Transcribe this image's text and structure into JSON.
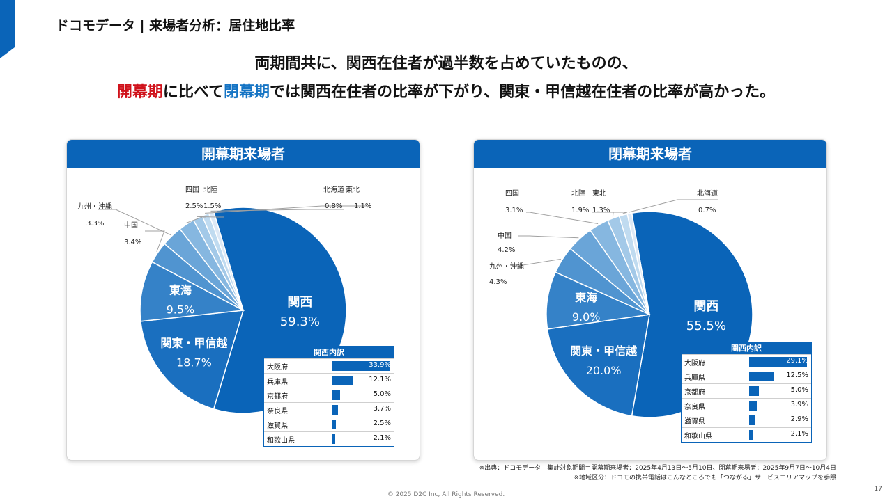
{
  "page": {
    "title": "ドコモデータ | 来場者分析：居住地比率",
    "headline1": "両期間共に、関西在住者が過半数を占めていたものの、",
    "headline2": {
      "part1": "開幕期",
      "part2": "に比べて",
      "part3": "閉幕期",
      "part4": "では関西在住者の比率が下がり、関東・甲信越在住者の比率が高かった。"
    },
    "colors": {
      "brand": "#0a64b8",
      "red": "#d0121b",
      "blue": "#1574c4"
    }
  },
  "charts": {
    "left": {
      "title": "開幕期来場者",
      "breakdown_title": "関西内訳"
    },
    "right": {
      "title": "閉幕期来場者",
      "breakdown_title": "関西内訳"
    }
  },
  "chart_data": [
    {
      "type": "pie",
      "title": "開幕期来場者",
      "slices": [
        {
          "label": "関西",
          "value": 59.3,
          "value_label": "59.3%"
        },
        {
          "label": "関東・甲信越",
          "value": 18.7,
          "value_label": "18.7%"
        },
        {
          "label": "東海",
          "value": 9.5,
          "value_label": "9.5%"
        },
        {
          "label": "中国",
          "value": 3.4,
          "value_label": "3.4%"
        },
        {
          "label": "九州・沖縄",
          "value": 3.3,
          "value_label": "3.3%"
        },
        {
          "label": "四国",
          "value": 2.5,
          "value_label": "2.5%"
        },
        {
          "label": "北陸",
          "value": 1.5,
          "value_label": "1.5%"
        },
        {
          "label": "東北",
          "value": 1.1,
          "value_label": "1.1%"
        },
        {
          "label": "北海道",
          "value": 0.8,
          "value_label": "0.8%"
        }
      ],
      "breakdown": {
        "title": "関西内訳",
        "items": [
          {
            "label": "大阪府",
            "value": 33.9,
            "value_label": "33.9%"
          },
          {
            "label": "兵庫県",
            "value": 12.1,
            "value_label": "12.1%"
          },
          {
            "label": "京都府",
            "value": 5.0,
            "value_label": "5.0%"
          },
          {
            "label": "奈良県",
            "value": 3.7,
            "value_label": "3.7%"
          },
          {
            "label": "滋賀県",
            "value": 2.5,
            "value_label": "2.5%"
          },
          {
            "label": "和歌山県",
            "value": 2.1,
            "value_label": "2.1%"
          }
        ]
      }
    },
    {
      "type": "pie",
      "title": "閉幕期来場者",
      "slices": [
        {
          "label": "関西",
          "value": 55.5,
          "value_label": "55.5%"
        },
        {
          "label": "関東・甲信越",
          "value": 20.0,
          "value_label": "20.0%"
        },
        {
          "label": "東海",
          "value": 9.0,
          "value_label": "9.0%"
        },
        {
          "label": "九州・沖縄",
          "value": 4.3,
          "value_label": "4.3%"
        },
        {
          "label": "中国",
          "value": 4.2,
          "value_label": "4.2%"
        },
        {
          "label": "四国",
          "value": 3.1,
          "value_label": "3.1%"
        },
        {
          "label": "北陸",
          "value": 1.9,
          "value_label": "1.9%"
        },
        {
          "label": "東北",
          "value": 1.3,
          "value_label": "1.3%"
        },
        {
          "label": "北海道",
          "value": 0.7,
          "value_label": "0.7%"
        }
      ],
      "breakdown": {
        "title": "関西内訳",
        "items": [
          {
            "label": "大阪府",
            "value": 29.1,
            "value_label": "29.1%"
          },
          {
            "label": "兵庫県",
            "value": 12.5,
            "value_label": "12.5%"
          },
          {
            "label": "京都府",
            "value": 5.0,
            "value_label": "5.0%"
          },
          {
            "label": "奈良県",
            "value": 3.9,
            "value_label": "3.9%"
          },
          {
            "label": "滋賀県",
            "value": 2.9,
            "value_label": "2.9%"
          },
          {
            "label": "和歌山県",
            "value": 2.1,
            "value_label": "2.1%"
          }
        ]
      }
    }
  ],
  "footer": {
    "note1": "※出典：ドコモデータ　集計対象期間＝開幕期来場者：2025年4月13日～5月10日、閉幕期来場者：2025年9月7日～10月4日",
    "note2": "※地域区分：ドコモの携帯電話はこんなところでも「つながる」サービスエリアマップを参照",
    "copyright": "© 2025 D2C Inc, All Rights Reserved.",
    "page_number": "17"
  }
}
